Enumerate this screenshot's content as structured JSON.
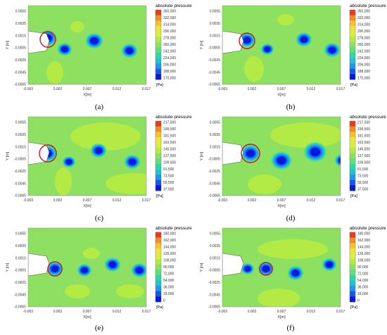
{
  "axes": {
    "xlabel": "X[m]",
    "ylabel": "Y [m]",
    "xticks": [
      "-0.003",
      "0.002",
      "0.007",
      "0.012",
      "0.017"
    ],
    "yticks": [
      "0.0055",
      "0.0035",
      "0.0015",
      "-0.0005",
      "-0.0025",
      "-0.0045",
      "-0.0065"
    ]
  },
  "colorbar": {
    "title": "absolute pressure",
    "unit": "[Pa]"
  },
  "colors": {
    "background": "#8ee060",
    "scale": [
      "#0018e6",
      "#1a55f0",
      "#1a9ae8",
      "#20c4d0",
      "#2ad8a8",
      "#5ee07a",
      "#8ee060",
      "#b4ea44",
      "#d8f03c",
      "#f0e436",
      "#f6c02e",
      "#f28c26",
      "#ea3a1a"
    ],
    "circle": "#c8102e"
  },
  "chart_data": [
    {
      "type": "heatmap",
      "caption": "(a)",
      "colorbar_labels": [
        "350,000",
        "332,000",
        "314,000",
        "296,000",
        "278,000",
        "260,000",
        "242,000",
        "224,000",
        "206,000",
        "188,000",
        "170,000"
      ]
    },
    {
      "type": "heatmap",
      "caption": "(b)",
      "colorbar_labels": [
        "350,000",
        "332,000",
        "314,000",
        "296,000",
        "278,000",
        "260,000",
        "242,000",
        "224,000",
        "206,000",
        "188,000",
        "170,000"
      ]
    },
    {
      "type": "heatmap",
      "caption": "(c)",
      "colorbar_labels": [
        "217,500",
        "199,500",
        "181,500",
        "163,500",
        "145,500",
        "127,500",
        "109,500",
        "91,500",
        "73,500",
        "55,500",
        "37,500"
      ]
    },
    {
      "type": "heatmap",
      "caption": "(d)",
      "colorbar_labels": [
        "217,500",
        "199,500",
        "181,500",
        "163,500",
        "145,500",
        "127,500",
        "109,500",
        "91,500",
        "73,500",
        "55,500",
        "37,500"
      ]
    },
    {
      "type": "heatmap",
      "caption": "(e)",
      "colorbar_labels": [
        "180,000",
        "162,000",
        "144,000",
        "126,000",
        "108,000",
        "90,000",
        "72,000",
        "54,000",
        "36,000",
        "18,000",
        "0"
      ]
    },
    {
      "type": "heatmap",
      "caption": "(f)",
      "colorbar_labels": [
        "180,000",
        "162,000",
        "144,000",
        "126,000",
        "108,000",
        "90,000",
        "72,000",
        "54,000",
        "36,000",
        "18,000",
        "0"
      ]
    }
  ]
}
